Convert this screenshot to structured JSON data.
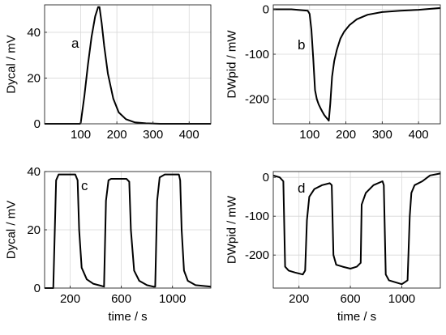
{
  "chart_data": [
    {
      "id": "a",
      "type": "line",
      "panel_label": "a",
      "ylabel": "Dycal / mV",
      "xlabel": "",
      "xlim": [
        0,
        460
      ],
      "ylim": [
        0,
        52
      ],
      "xticks": [
        100,
        200,
        300,
        400
      ],
      "yticks": [
        0,
        20,
        40
      ],
      "grid": true,
      "series": [
        {
          "x": [
            0,
            98,
            100,
            110,
            120,
            130,
            140,
            148,
            152,
            158,
            165,
            175,
            190,
            205,
            225,
            250,
            280,
            320,
            360,
            460
          ],
          "y": [
            0,
            0,
            0.5,
            12,
            26,
            38,
            47,
            51,
            51,
            44,
            34,
            22,
            11,
            5,
            2,
            0.6,
            0.2,
            0,
            0,
            0
          ]
        }
      ]
    },
    {
      "id": "b",
      "type": "line",
      "panel_label": "b",
      "ylabel": "DWpid / mW",
      "xlabel": "",
      "xlim": [
        0,
        460
      ],
      "ylim": [
        -255,
        10
      ],
      "xticks": [
        100,
        200,
        300,
        400
      ],
      "yticks": [
        0,
        -100,
        -200
      ],
      "grid": true,
      "series": [
        {
          "x": [
            0,
            50,
            95,
            100,
            105,
            110,
            115,
            120,
            125,
            130,
            135,
            140,
            145,
            150,
            153,
            157,
            162,
            168,
            175,
            185,
            195,
            210,
            230,
            260,
            300,
            350,
            400,
            460
          ],
          "y": [
            0,
            0,
            -3,
            -10,
            -45,
            -110,
            -180,
            -200,
            -212,
            -220,
            -228,
            -235,
            -240,
            -245,
            -248,
            -210,
            -150,
            -115,
            -90,
            -65,
            -50,
            -35,
            -22,
            -12,
            -6,
            -3,
            -1,
            3
          ]
        }
      ]
    },
    {
      "id": "c",
      "type": "line",
      "panel_label": "c",
      "ylabel": "Dycal / mV",
      "xlabel": "time  / s",
      "xlim": [
        0,
        1300
      ],
      "ylim": [
        0,
        40
      ],
      "xticks": [
        200,
        600,
        1000
      ],
      "yticks": [
        0,
        20,
        40
      ],
      "grid": true,
      "series": [
        {
          "x": [
            0,
            68,
            90,
            110,
            150,
            200,
            240,
            258,
            270,
            290,
            330,
            380,
            440,
            465,
            480,
            500,
            520,
            560,
            600,
            640,
            662,
            675,
            700,
            740,
            800,
            850,
            865,
            880,
            900,
            940,
            1000,
            1050,
            1060,
            1072,
            1090,
            1120,
            1180,
            1300
          ],
          "y": [
            0,
            0,
            37,
            39,
            39,
            39,
            39,
            37,
            20,
            7,
            3,
            1.5,
            0.8,
            0.5,
            30,
            37,
            37.5,
            37.5,
            37.5,
            37.5,
            36.5,
            20,
            6,
            2.5,
            1,
            0.5,
            0.5,
            30,
            38,
            39,
            39,
            39,
            37,
            20,
            6,
            2.5,
            1,
            0.5
          ]
        }
      ]
    },
    {
      "id": "d",
      "type": "line",
      "panel_label": "d",
      "ylabel": "DWpid / mW",
      "xlabel": "time  / s",
      "xlim": [
        0,
        1300
      ],
      "ylim": [
        -285,
        15
      ],
      "xticks": [
        200,
        600,
        1000
      ],
      "yticks": [
        0,
        -100,
        -200
      ],
      "grid": true,
      "series": [
        {
          "x": [
            0,
            50,
            78,
            92,
            120,
            170,
            230,
            248,
            262,
            280,
            320,
            380,
            440,
            455,
            468,
            490,
            540,
            600,
            650,
            680,
            688,
            720,
            780,
            850,
            860,
            875,
            900,
            950,
            1000,
            1045,
            1062,
            1075,
            1100,
            1160,
            1220,
            1300
          ],
          "y": [
            5,
            0,
            -10,
            -230,
            -240,
            -245,
            -250,
            -240,
            -110,
            -50,
            -30,
            -20,
            -15,
            -20,
            -200,
            -225,
            -230,
            -235,
            -230,
            -220,
            -70,
            -40,
            -20,
            -10,
            -20,
            -250,
            -265,
            -270,
            -275,
            -265,
            -100,
            -40,
            -20,
            -10,
            5,
            10
          ]
        }
      ]
    }
  ]
}
